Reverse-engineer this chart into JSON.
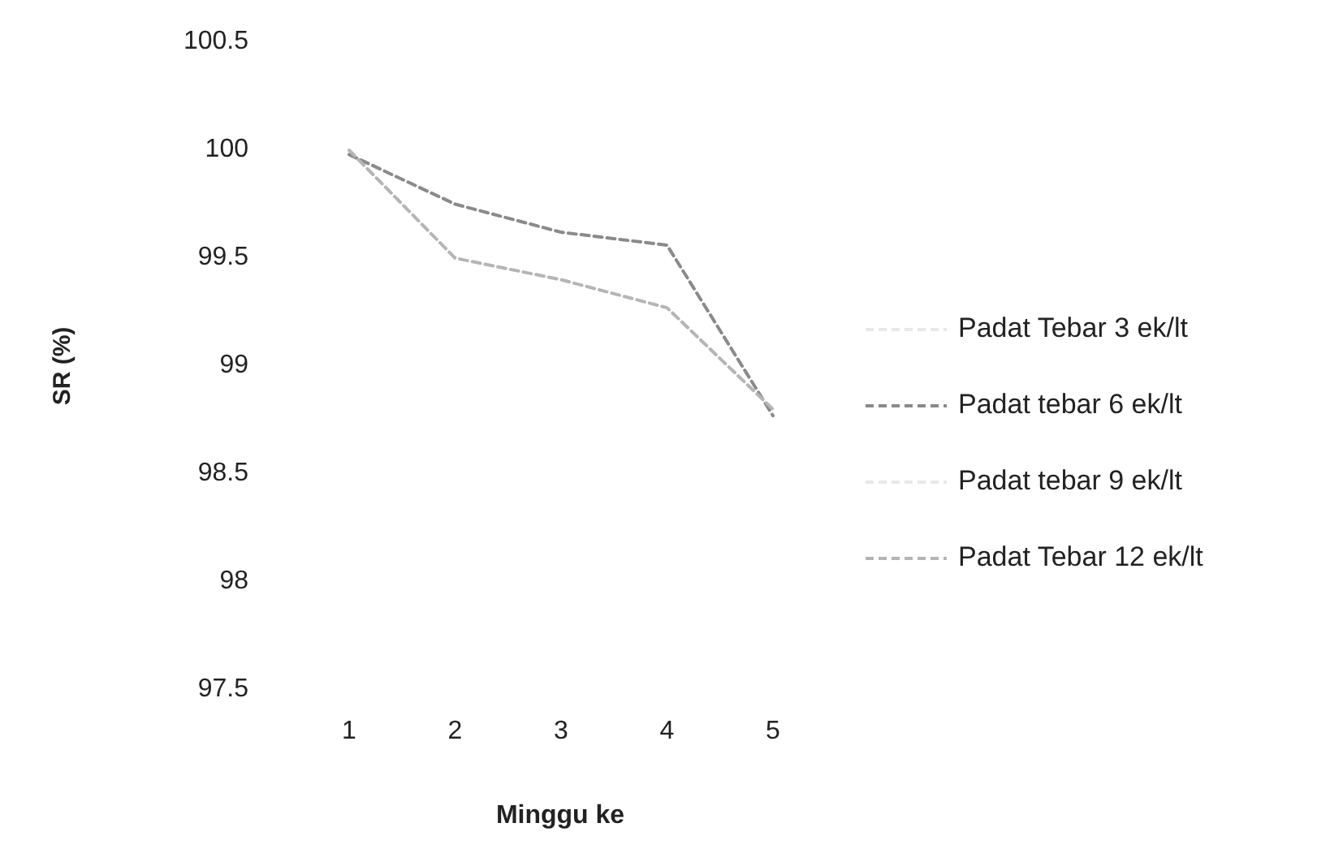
{
  "chart_data": {
    "type": "line",
    "xlabel": "Minggu ke",
    "ylabel": "SR (%)",
    "x": [
      1,
      2,
      3,
      4,
      5
    ],
    "xlim": [
      1,
      5
    ],
    "xticks": [
      1,
      2,
      3,
      4,
      5
    ],
    "ylim": [
      97.5,
      100.5
    ],
    "yticks": [
      97.5,
      98,
      98.5,
      99,
      99.5,
      100,
      100.5
    ],
    "grid": false,
    "legend": "right",
    "line_style": "dashed",
    "series": [
      {
        "name": "Padat Tebar 3 ek/lt",
        "color": "#e8e8e8",
        "values": [
          null,
          null,
          null,
          null,
          null
        ]
      },
      {
        "name": "Padat tebar 6 ek/lt",
        "color": "#8a8a8a",
        "values": [
          99.98,
          99.75,
          99.62,
          99.56,
          98.77
        ]
      },
      {
        "name": "Padat tebar 9 ek/lt",
        "color": "#e8e8e8",
        "values": [
          null,
          null,
          null,
          null,
          null
        ]
      },
      {
        "name": "Padat Tebar 12 ek/lt",
        "color": "#b5b5b5",
        "values": [
          100,
          99.5,
          99.4,
          99.27,
          98.8
        ]
      }
    ]
  }
}
